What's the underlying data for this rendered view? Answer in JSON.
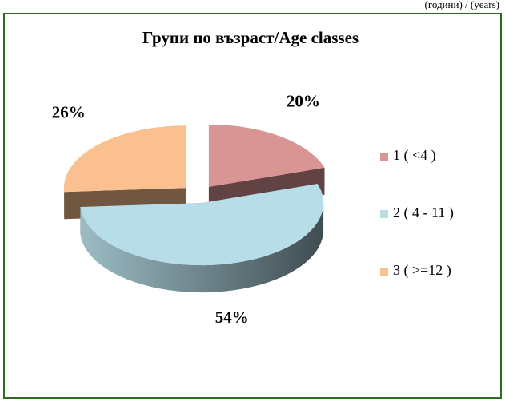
{
  "chart_data": {
    "type": "pie3d",
    "title": "Групи по възраст/Age classes",
    "annotation": "(години) / (years)",
    "categories": [
      "1 ( <4 )",
      "2 ( 4 - 11 )",
      "3 ( >=12 )"
    ],
    "values": [
      20,
      54,
      26
    ],
    "value_labels": [
      "20%",
      "54%",
      "26%"
    ],
    "colors": [
      "#d99594",
      "#b7dde8",
      "#fac08f"
    ],
    "legend": "right"
  }
}
